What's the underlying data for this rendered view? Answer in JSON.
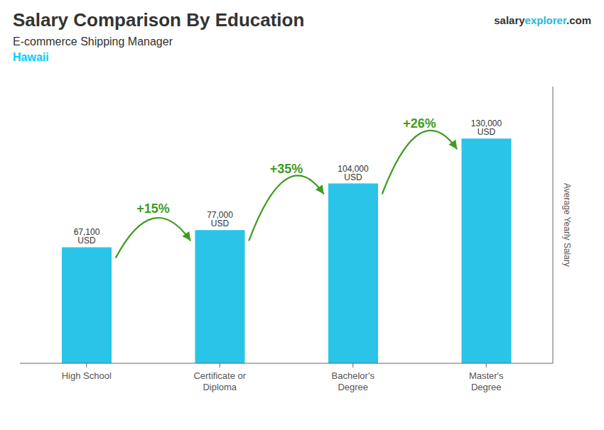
{
  "chart_data": {
    "type": "bar",
    "title": "Salary Comparison By Education",
    "subtitle": "E-commerce Shipping Manager",
    "categories": [
      "High School",
      "Certificate or\nDiploma",
      "Bachelor's\nDegree",
      "Master's\nDegree"
    ],
    "values": [
      67100,
      77000,
      104000,
      130000
    ],
    "value_labels": [
      "67,100 USD",
      "77,000 USD",
      "104,000 USD",
      "130,000 USD"
    ],
    "data_labels": true,
    "color": "#29c4e8",
    "ylabel": "Average Yearly Salary",
    "ylim": [
      0,
      160000
    ],
    "grid": false,
    "tick_labels": "x",
    "annotations": [
      {
        "text": "Hawaii",
        "color": "#00ccff"
      },
      {
        "parts": [
          {
            "text": "salary"
          },
          {
            "text": "explorer",
            "color": "#29b6d8"
          },
          {
            "text": ".com"
          }
        ]
      },
      {
        "text": "+15%",
        "from": "High School",
        "to": "Certificate or\nDiploma"
      },
      {
        "text": "+35%",
        "from": "Certificate or\nDiploma",
        "to": "Bachelor's\nDegree"
      },
      {
        "text": "+26%",
        "from": "Bachelor's\nDegree",
        "to": "Master's\nDegree"
      }
    ]
  }
}
